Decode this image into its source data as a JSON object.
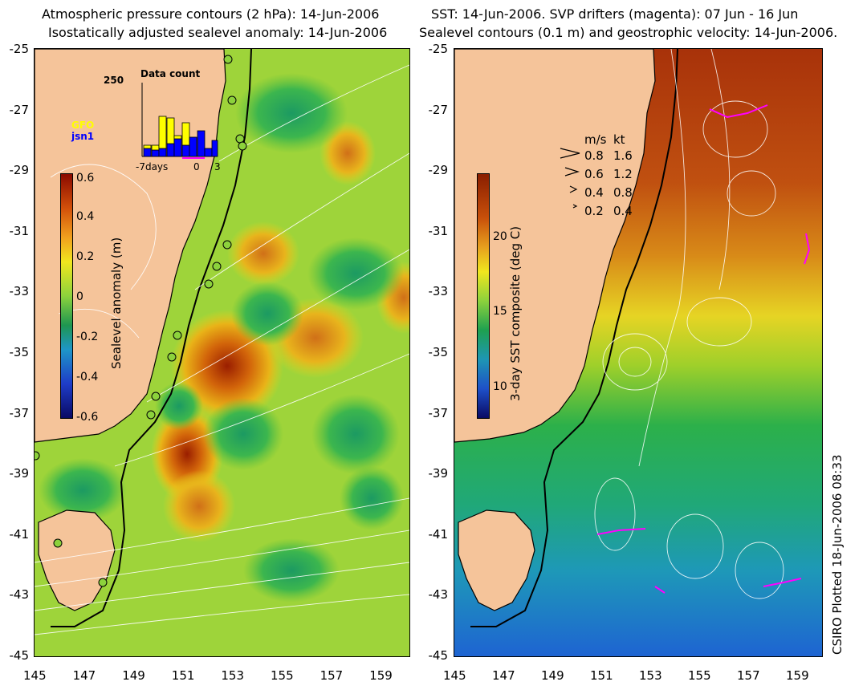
{
  "left_panel": {
    "title_line1": "Atmospheric pressure contours (2 hPa): 14-Jun-2006",
    "title_line2": "Isostatically adjusted sealevel anomaly: 14-Jun-2006",
    "colorbar_title": "Sealevel anomaly (m)",
    "colorbar_ticks": [
      "0.6",
      "0.4",
      "0.2",
      "0",
      "-0.2",
      "-0.4",
      "-0.6"
    ],
    "inset": {
      "title": "Data count",
      "ymax_label": "250",
      "x_labels": [
        "-7days",
        "0",
        "3"
      ],
      "series": [
        {
          "name": "GFO",
          "color": "#ffff00"
        },
        {
          "name": "jsn1",
          "color": "#0000ff"
        }
      ]
    }
  },
  "right_panel": {
    "title_line1": "SST: 14-Jun-2006. SVP drifters (magenta): 07 Jun - 16 Jun",
    "title_line2": "Sealevel contours (0.1 m) and geostrophic velocity: 14-Jun-2006.",
    "colorbar_title": "3-day SST composite (deg C)",
    "colorbar_ticks": [
      "20",
      "15",
      "10"
    ],
    "speed_legend": {
      "header_ms": "m/s",
      "header_kt": "kt",
      "rows": [
        {
          "ms": "0.8",
          "kt": "1.6"
        },
        {
          "ms": "0.6",
          "kt": "1.2"
        },
        {
          "ms": "0.4",
          "kt": "0.8"
        },
        {
          "ms": "0.2",
          "kt": "0.4"
        }
      ]
    }
  },
  "y_ticks": [
    "-25",
    "-27",
    "-29",
    "-31",
    "-33",
    "-35",
    "-37",
    "-39",
    "-41",
    "-43",
    "-45"
  ],
  "x_ticks": [
    "145",
    "147",
    "149",
    "151",
    "153",
    "155",
    "157",
    "159"
  ],
  "credit": "CSIRO Plotted 18-Jun-2006 08:33",
  "colors": {
    "land": "#f5c49a",
    "coastline": "#000000",
    "contour": "#ffffff",
    "drifters": "#ff00ff",
    "accent_warm": "#c84a00",
    "accent_cool": "#1a9a4a"
  }
}
